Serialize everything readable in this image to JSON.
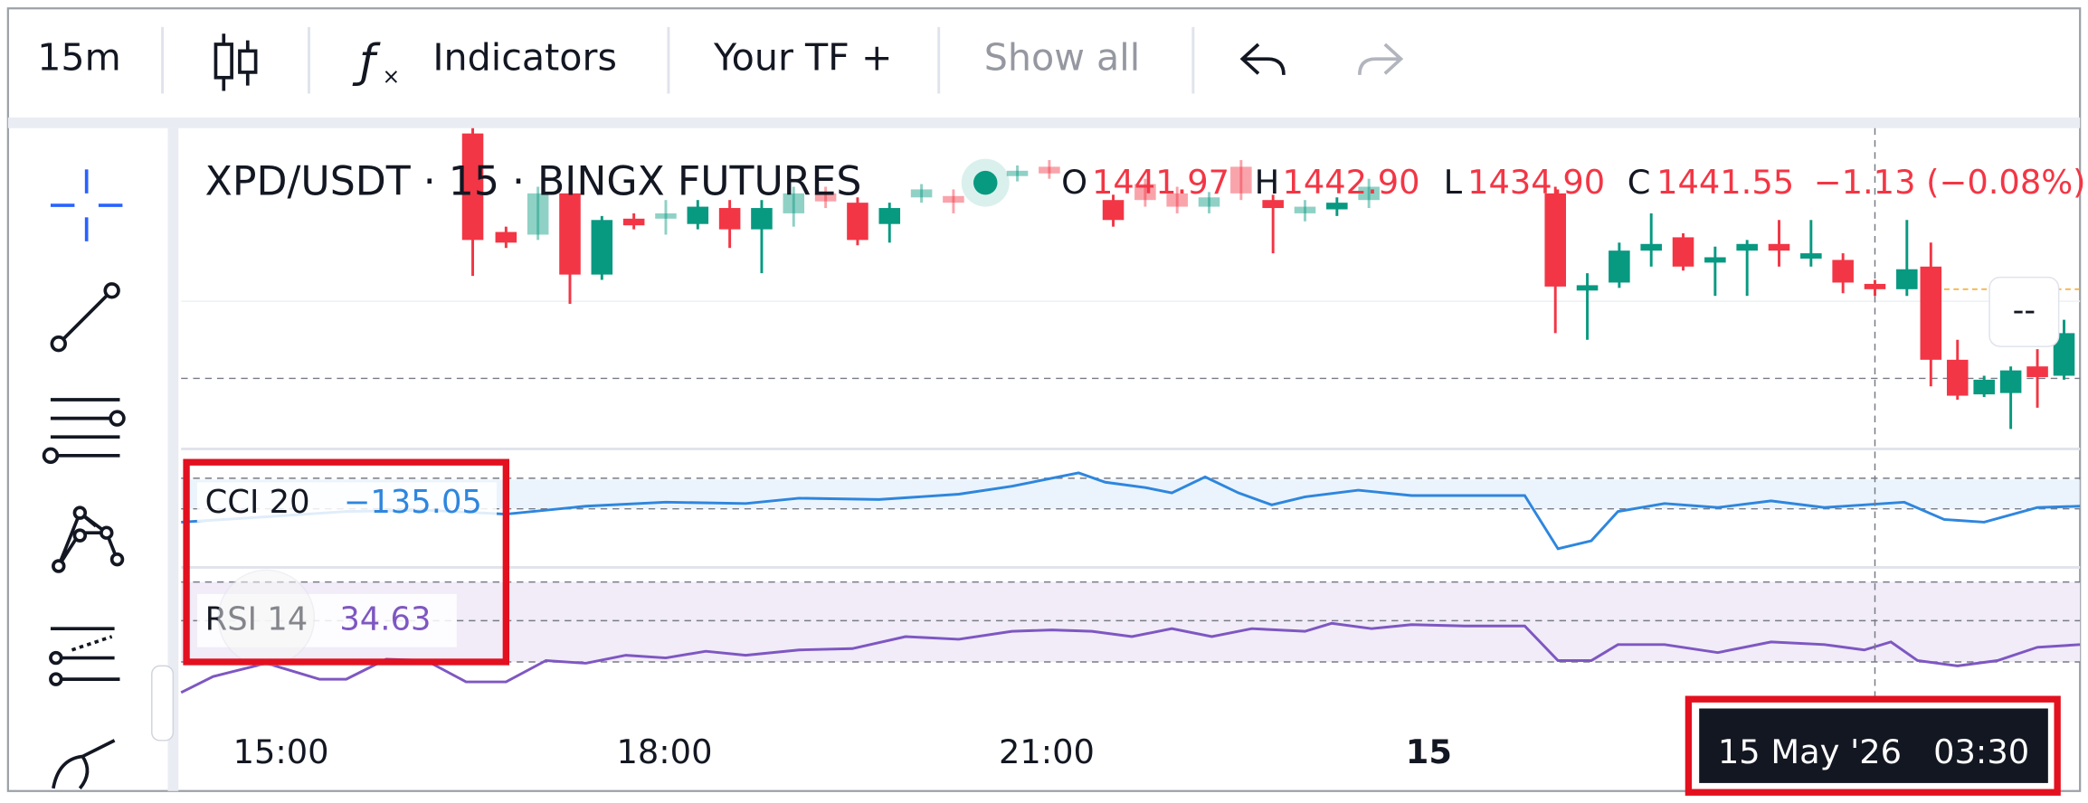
{
  "toolbar": {
    "interval": "15m",
    "indicators": "Indicators",
    "your_tf": "Your TF +",
    "show_all": "Show all"
  },
  "chart": {
    "symbol": "XPD/USDT · 15 · BINGX FUTURES",
    "ohlc": {
      "o_label": "O",
      "open": "1441.97",
      "h_label": "H",
      "high": "1442.90",
      "l_label": "L",
      "low": "1434.90",
      "c_label": "C",
      "close": "1441.55",
      "change": "−1.13 (−0.08%)"
    },
    "price_label": "--"
  },
  "indicators": [
    {
      "name": "CCI 20",
      "value": "−135.05"
    },
    {
      "name": "RSI 14",
      "value": "34.63"
    }
  ],
  "time_axis": [
    "15:00",
    "18:00",
    "21:00",
    "15"
  ],
  "crosshair_time": "15 May '26   03:30"
}
